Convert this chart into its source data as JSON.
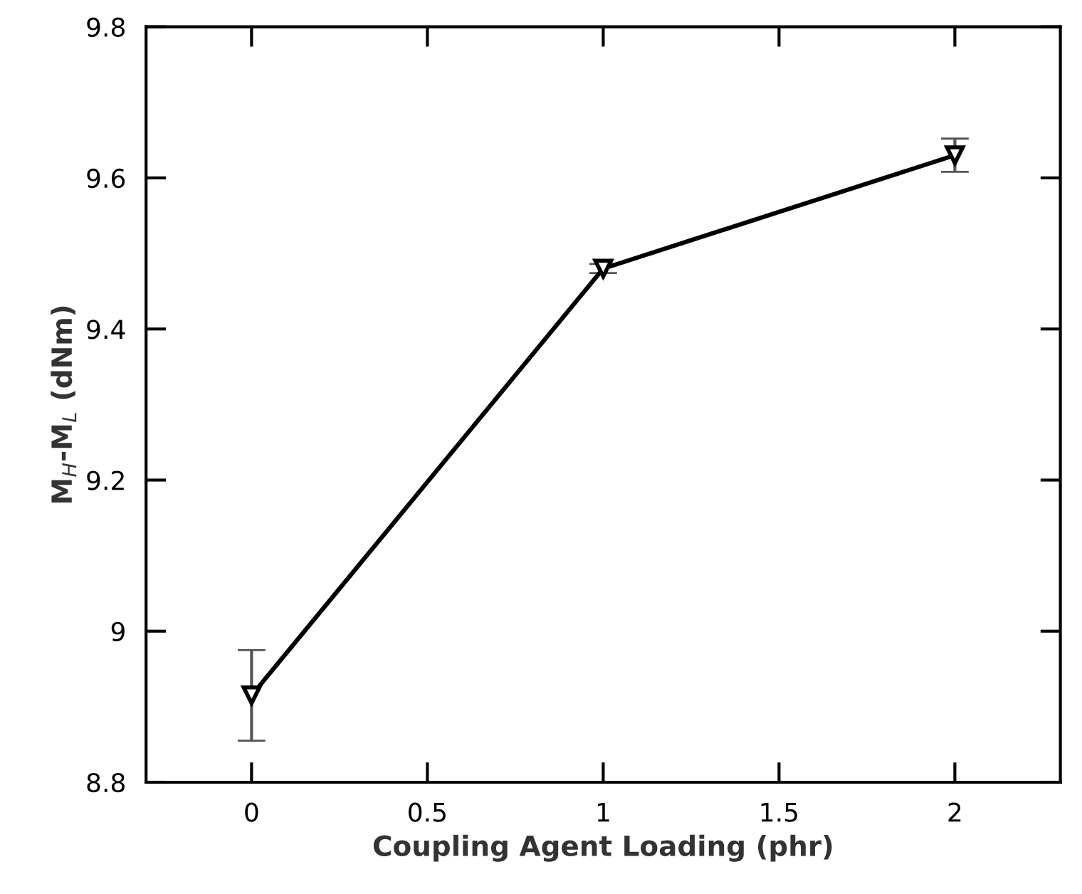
{
  "chart_data": {
    "type": "line",
    "xlabel": "Coupling Agent Loading (phr)",
    "ylabel": "M$_{H}$-M$_{L}$ (dNm)",
    "x": [
      0,
      1,
      2
    ],
    "series": [
      {
        "color": "#000000",
        "values": [
          8.915,
          9.48,
          9.63
        ],
        "errors": [
          0.06,
          0.006,
          0.022
        ]
      }
    ],
    "xlim": [
      -0.3,
      2.3
    ],
    "ylim": [
      8.8,
      9.8
    ],
    "xticks": [
      0,
      0.5,
      1,
      1.5,
      2
    ],
    "yticks": [
      8.8,
      9,
      9.2,
      9.4,
      9.6,
      9.8
    ],
    "marker": "triangle",
    "line_style": "solid",
    "grid": false,
    "legend": false
  }
}
